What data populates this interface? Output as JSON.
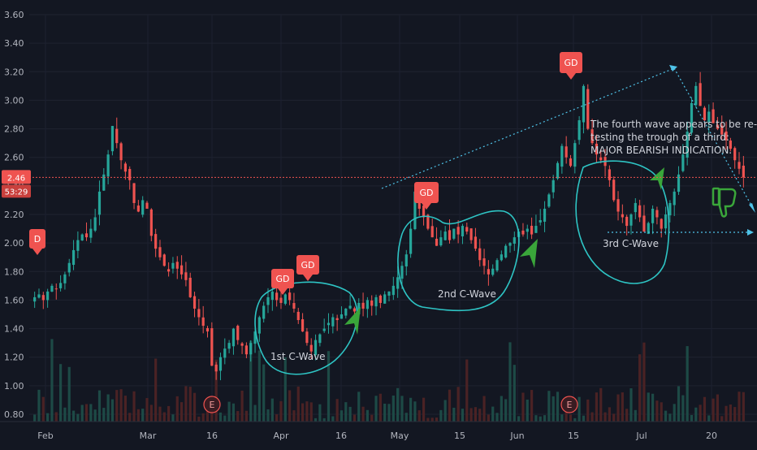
{
  "chart_data": {
    "type": "candlestick",
    "y_ticks": [
      "3.60",
      "3.40",
      "3.20",
      "3.00",
      "2.80",
      "2.60",
      "2.40",
      "2.20",
      "2.00",
      "1.80",
      "1.60",
      "1.40",
      "1.20",
      "1.00",
      "0.80"
    ],
    "ylim": [
      0.78,
      3.68
    ],
    "x_ticks": [
      "Feb",
      "Mar",
      "16",
      "Apr",
      "16",
      "May",
      "15",
      "Jun",
      "15",
      "Jul",
      "20"
    ],
    "current_price": "2.46",
    "countdown": "53:29",
    "current_value": 2.46,
    "colors": {
      "up": "#26a69a",
      "down": "#ef5350",
      "background": "#131722",
      "price_line": "#ef5350",
      "annotation": "#00bcd4",
      "arrow": "#3aa63a"
    },
    "events": [
      {
        "label": "D",
        "price": 2.02
      },
      {
        "label": "GD",
        "price": 1.74
      },
      {
        "label": "GD",
        "price": 1.8
      },
      {
        "label": "GD",
        "price": 2.36
      },
      {
        "label": "GD",
        "price": 3.35
      }
    ],
    "earnings_markers": [
      "E",
      "E"
    ],
    "wave_labels": [
      "1st C-Wave",
      "2nd C-Wave",
      "3rd C-Wave"
    ],
    "annotation_text": [
      "The fourth wave appears to be re-",
      "testing the trough of a third:",
      "MAJOR BEARISH INDICATION."
    ],
    "thumb_icon": "thumbs-down-icon",
    "arrow_icon": "arrow-up-right-icon",
    "candles_approx": [
      1.62,
      1.64,
      1.6,
      1.66,
      1.7,
      1.68,
      1.72,
      1.78,
      1.86,
      1.95,
      2.02,
      2.06,
      2.04,
      2.1,
      2.18,
      2.36,
      2.48,
      2.62,
      2.82,
      2.7,
      2.58,
      2.5,
      2.44,
      2.28,
      2.22,
      2.3,
      2.24,
      2.05,
      1.96,
      1.9,
      1.84,
      1.8,
      1.86,
      1.82,
      1.78,
      1.74,
      1.62,
      1.54,
      1.48,
      1.42,
      1.38,
      1.14,
      1.1,
      1.2,
      1.26,
      1.3,
      1.4,
      1.32,
      1.28,
      1.22,
      1.3,
      1.38,
      1.48,
      1.56,
      1.62,
      1.66,
      1.6,
      1.58,
      1.64,
      1.6,
      1.54,
      1.46,
      1.38,
      1.3,
      1.24,
      1.32,
      1.36,
      1.4,
      1.44,
      1.48,
      1.46,
      1.5,
      1.54,
      1.56,
      1.52,
      1.58,
      1.54,
      1.6,
      1.56,
      1.62,
      1.58,
      1.64,
      1.66,
      1.7,
      1.76,
      1.84,
      1.92,
      2.1,
      2.36,
      2.24,
      2.18,
      2.1,
      2.04,
      1.98,
      2.04,
      2.08,
      2.02,
      2.1,
      2.06,
      2.12,
      2.08,
      2.02,
      1.96,
      1.88,
      1.84,
      1.78,
      1.82,
      1.88,
      1.92,
      1.98,
      2.0,
      2.04,
      2.08,
      2.06,
      2.1,
      2.06,
      2.12,
      2.16,
      2.24,
      2.34,
      2.44,
      2.56,
      2.68,
      2.6,
      2.54,
      2.7,
      2.86,
      3.1,
      2.8,
      2.7,
      2.62,
      2.58,
      2.54,
      2.44,
      2.3,
      2.22,
      2.18,
      2.12,
      2.2,
      2.28,
      2.18,
      2.08,
      2.14,
      2.24,
      2.18,
      2.1,
      2.2,
      2.28,
      2.36,
      2.48,
      2.62,
      2.78,
      2.98,
      3.1,
      2.96,
      2.86,
      2.92,
      2.84,
      2.8,
      2.76,
      2.72,
      2.66,
      2.58,
      2.52,
      2.46
    ]
  }
}
